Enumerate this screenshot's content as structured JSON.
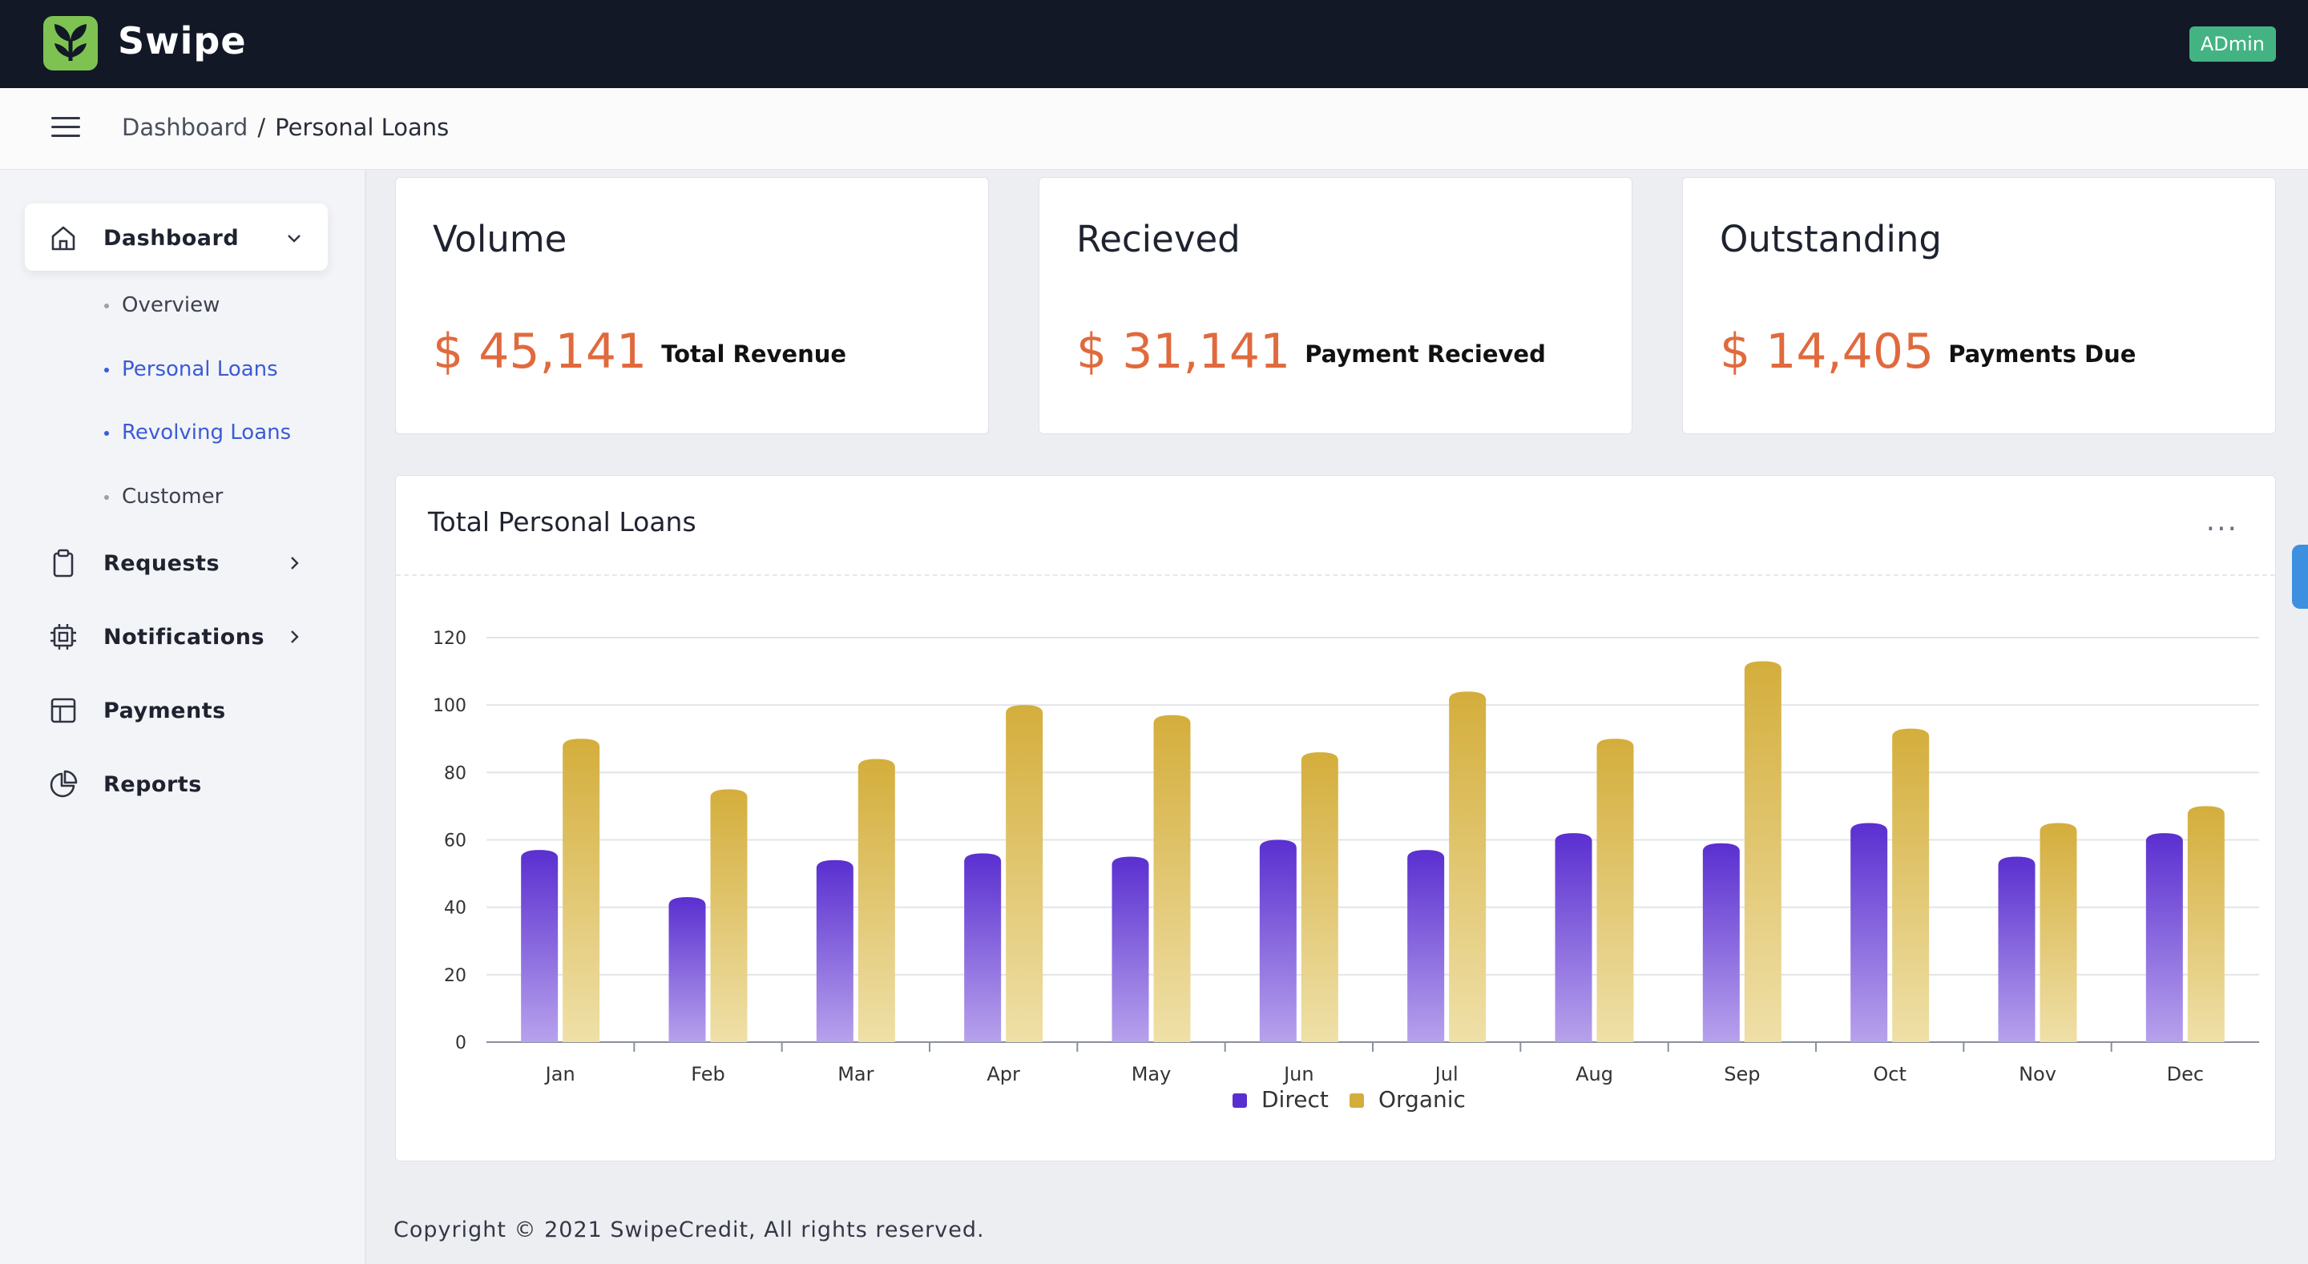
{
  "app": {
    "brand": "Swipe",
    "user_badge": "ADmin"
  },
  "breadcrumb": {
    "root": "Dashboard",
    "separator": "/",
    "current": "Personal Loans"
  },
  "sidebar": {
    "items": [
      {
        "label": "Dashboard",
        "icon": "home-icon"
      },
      {
        "label": "Requests",
        "icon": "clipboard-icon"
      },
      {
        "label": "Notifications",
        "icon": "chip-icon"
      },
      {
        "label": "Payments",
        "icon": "layout-icon"
      },
      {
        "label": "Reports",
        "icon": "pie-chart-icon"
      }
    ],
    "subitems": [
      {
        "label": "Overview"
      },
      {
        "label": "Personal Loans"
      },
      {
        "label": "Revolving Loans"
      },
      {
        "label": "Customer"
      }
    ]
  },
  "stats": [
    {
      "title": "Volume",
      "value": "$ 45,141",
      "caption": "Total Revenue"
    },
    {
      "title": "Recieved",
      "value": "$ 31,141",
      "caption": "Payment Recieved"
    },
    {
      "title": "Outstanding",
      "value": "$ 14,405",
      "caption": "Payments Due"
    }
  ],
  "chart_panel": {
    "title": "Total Personal Loans",
    "more": "..."
  },
  "chart_data": {
    "type": "bar",
    "title": "Total Personal Loans",
    "categories": [
      "Jan",
      "Feb",
      "Mar",
      "Apr",
      "May",
      "Jun",
      "Jul",
      "Aug",
      "Sep",
      "Oct",
      "Nov",
      "Dec"
    ],
    "series": [
      {
        "name": "Direct",
        "color": "#5a2fd0",
        "values": [
          57,
          43,
          54,
          56,
          55,
          60,
          57,
          62,
          59,
          65,
          55,
          62
        ]
      },
      {
        "name": "Organic",
        "color": "#d4ae3c",
        "values": [
          90,
          75,
          84,
          100,
          97,
          86,
          104,
          90,
          113,
          93,
          65,
          70
        ]
      }
    ],
    "yticks": [
      0,
      20,
      40,
      60,
      80,
      100,
      120
    ],
    "ylim": [
      0,
      120
    ],
    "xlabel": "",
    "ylabel": "",
    "legend_position": "bottom-center",
    "grid": true
  },
  "footer": {
    "text": "Copyright © 2021 SwipeCredit, All rights reserved."
  }
}
